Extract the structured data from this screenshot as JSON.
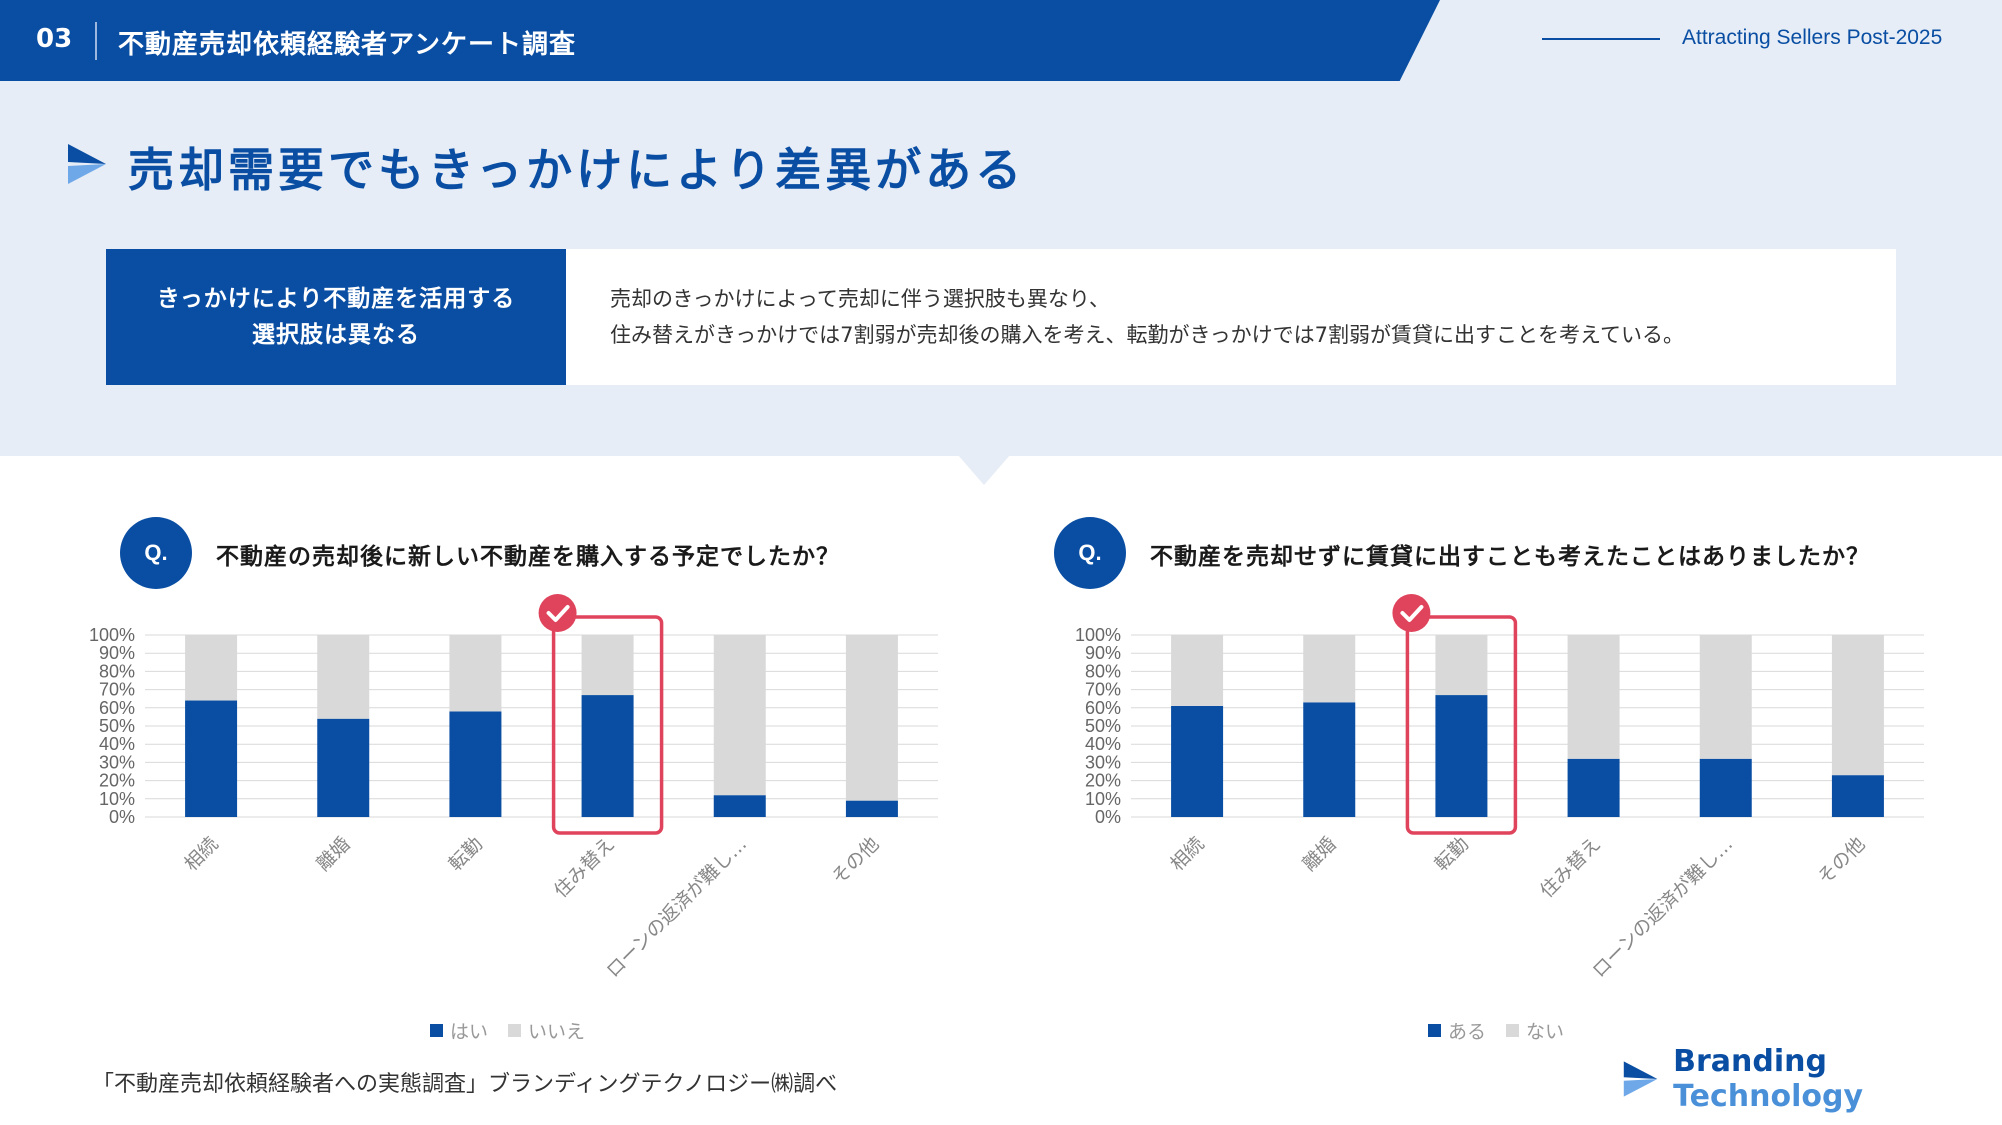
{
  "header": {
    "section_number": "03",
    "title": "不動産売却依頼経験者アンケート調査",
    "tagline": "Attracting Sellers Post-2025"
  },
  "main_title": "売却需要でもきっかけにより差異がある",
  "summary": {
    "label_line1": "きっかけにより不動産を活用する",
    "label_line2": "選択肢は異なる",
    "text_line1": "売却のきっかけによって売却に伴う選択肢も異なり、",
    "text_line2": "住み替えがきっかけでは7割弱が売却後の購入を考え、転勤がきっかけでは7割弱が賃貸に出すことを考えている。"
  },
  "colors": {
    "primary": "#0a4ea3",
    "secondary": "#d9d9d9",
    "highlight": "#e0435c"
  },
  "chart_data": [
    {
      "type": "bar",
      "stacked": true,
      "percent": true,
      "question_mark": "Q.",
      "title": "不動産の売却後に新しい不動産を購入する予定でしたか？",
      "categories": [
        "相続",
        "離婚",
        "転勤",
        "住み替え",
        "ローンの返済が難し…",
        "その他"
      ],
      "series": [
        {
          "name": "はい",
          "values": [
            64,
            54,
            58,
            67,
            12,
            9
          ]
        },
        {
          "name": "いいえ",
          "values": [
            36,
            46,
            42,
            33,
            88,
            91
          ]
        }
      ],
      "yticks": [
        "0%",
        "10%",
        "20%",
        "30%",
        "40%",
        "50%",
        "60%",
        "70%",
        "80%",
        "90%",
        "100%"
      ],
      "ylim": [
        0,
        100
      ],
      "highlight": "住み替え",
      "legend_position": "bottom"
    },
    {
      "type": "bar",
      "stacked": true,
      "percent": true,
      "question_mark": "Q.",
      "title": "不動産を売却せずに賃貸に出すことも考えたことはありましたか？",
      "categories": [
        "相続",
        "離婚",
        "転勤",
        "住み替え",
        "ローンの返済が難し…",
        "その他"
      ],
      "series": [
        {
          "name": "ある",
          "values": [
            61,
            63,
            67,
            32,
            32,
            23
          ]
        },
        {
          "name": "ない",
          "values": [
            39,
            37,
            33,
            68,
            68,
            77
          ]
        }
      ],
      "yticks": [
        "0%",
        "10%",
        "20%",
        "30%",
        "40%",
        "50%",
        "60%",
        "70%",
        "80%",
        "90%",
        "100%"
      ],
      "ylim": [
        0,
        100
      ],
      "highlight": "転勤",
      "legend_position": "bottom"
    }
  ],
  "source": "「不動産売却依頼経験者への実態調査」ブランディングテクノロジー㈱調べ",
  "brand": {
    "word1": "Branding",
    "word2": "Technology"
  }
}
